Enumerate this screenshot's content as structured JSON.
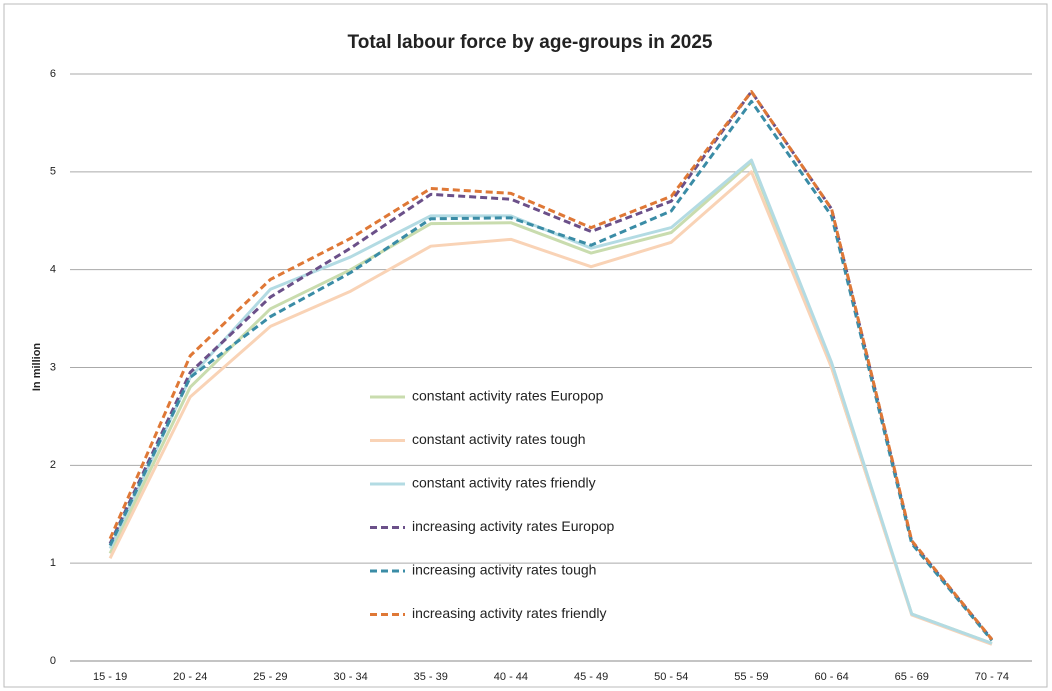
{
  "chart_data": {
    "type": "line",
    "title": "Total labour force by age-groups in 2025",
    "y_label": "In million",
    "categories": [
      "15 - 19",
      "20 - 24",
      "25 - 29",
      "30 - 34",
      "35 - 39",
      "40 - 44",
      "45 - 49",
      "50 - 54",
      "55 - 59",
      "60 - 64",
      "65 - 69",
      "70 - 74"
    ],
    "ylim": [
      0,
      6
    ],
    "yticks": [
      0,
      1,
      2,
      3,
      4,
      5,
      6
    ],
    "grid": true,
    "series": [
      {
        "name": "constant activity rates Europop",
        "color": "#c9dcae",
        "dashed": false,
        "values": [
          1.1,
          2.8,
          3.6,
          4.0,
          4.47,
          4.48,
          4.17,
          4.38,
          5.1,
          3.0,
          0.48,
          0.18
        ]
      },
      {
        "name": "constant activity rates tough",
        "color": "#f9d3b6",
        "dashed": false,
        "values": [
          1.05,
          2.7,
          3.42,
          3.78,
          4.24,
          4.31,
          4.03,
          4.28,
          5.0,
          3.0,
          0.47,
          0.17
        ]
      },
      {
        "name": "constant activity rates friendly",
        "color": "#b3dbe3",
        "dashed": false,
        "values": [
          1.15,
          2.9,
          3.8,
          4.13,
          4.55,
          4.55,
          4.22,
          4.43,
          5.12,
          3.05,
          0.48,
          0.18
        ]
      },
      {
        "name": "increasing activity rates Europop",
        "color": "#6b5089",
        "dashed": true,
        "values": [
          1.2,
          2.95,
          3.72,
          4.22,
          4.77,
          4.72,
          4.39,
          4.7,
          5.82,
          4.62,
          1.22,
          0.22
        ]
      },
      {
        "name": "increasing activity rates tough",
        "color": "#3a8ca6",
        "dashed": true,
        "values": [
          1.18,
          2.9,
          3.52,
          3.97,
          4.52,
          4.53,
          4.25,
          4.6,
          5.72,
          4.55,
          1.2,
          0.21
        ]
      },
      {
        "name": "increasing activity rates friendly",
        "color": "#df7836",
        "dashed": true,
        "values": [
          1.25,
          3.12,
          3.9,
          4.32,
          4.83,
          4.78,
          4.43,
          4.75,
          5.82,
          4.62,
          1.23,
          0.22
        ]
      }
    ]
  }
}
